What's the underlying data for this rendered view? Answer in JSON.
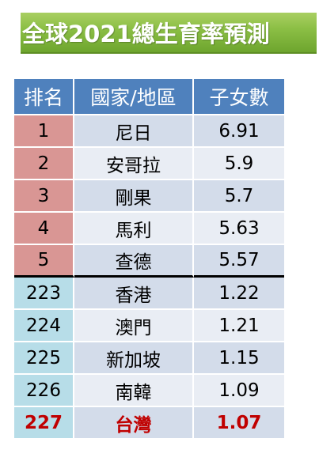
{
  "title": "全球2021總生育率預測",
  "table": {
    "headers": {
      "rank": "排名",
      "country": "國家/地區",
      "children": "子女數"
    },
    "top_rows": [
      {
        "rank": "1",
        "country": "尼日",
        "children": "6.91"
      },
      {
        "rank": "2",
        "country": "安哥拉",
        "children": "5.9"
      },
      {
        "rank": "3",
        "country": "剛果",
        "children": "5.7"
      },
      {
        "rank": "4",
        "country": "馬利",
        "children": "5.63"
      },
      {
        "rank": "5",
        "country": "查德",
        "children": "5.57"
      }
    ],
    "bottom_rows": [
      {
        "rank": "223",
        "country": "香港",
        "children": "1.22"
      },
      {
        "rank": "224",
        "country": "澳門",
        "children": "1.21"
      },
      {
        "rank": "225",
        "country": "新加坡",
        "children": "1.15"
      },
      {
        "rank": "226",
        "country": "南韓",
        "children": "1.09"
      },
      {
        "rank": "227",
        "country": "台灣",
        "children": "1.07"
      }
    ]
  },
  "colors": {
    "header": "#4f81bd",
    "top_rank": "#d99694",
    "bottom_rank": "#b7dde8",
    "highlight_text": "#c00000",
    "banner": "#8cbf45"
  }
}
